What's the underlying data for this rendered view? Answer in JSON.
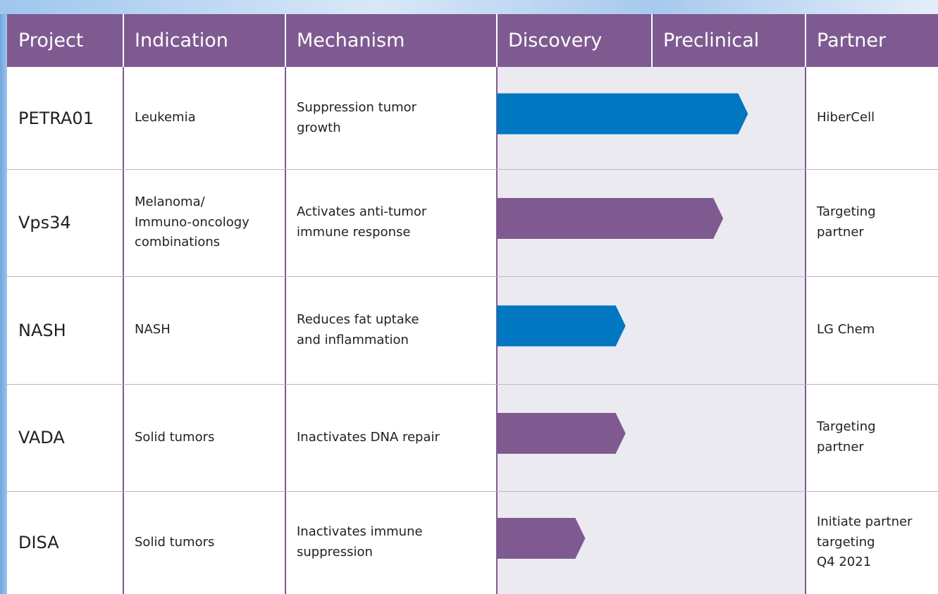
{
  "table": {
    "headers": [
      "Project",
      "Indication",
      "Mechanism",
      "Discovery",
      "Preclinical",
      "Partner"
    ],
    "rows": [
      {
        "project": "PETRA01",
        "indication": "Leukemia",
        "mechanism": "Suppression tumor\ngrowth",
        "progress": 1.62,
        "color": "#0077c0",
        "partner": "HiberCell"
      },
      {
        "project": "Vps34",
        "indication": "Melanoma/\nImmuno-oncology\ncombinations",
        "mechanism": "Activates anti-tumor\nimmune response",
        "progress": 1.46,
        "color": "#7f5a91",
        "partner": "Targeting\npartner"
      },
      {
        "project": "NASH",
        "indication": "NASH",
        "mechanism": "Reduces fat uptake\nand inflammation",
        "progress": 0.83,
        "color": "#0077c0",
        "partner": "LG Chem"
      },
      {
        "project": "VADA",
        "indication": "Solid tumors",
        "mechanism": "Inactivates DNA repair",
        "progress": 0.83,
        "color": "#7f5a91",
        "partner": "Targeting\npartner"
      },
      {
        "project": "DISA",
        "indication": "Solid tumors",
        "mechanism": "Inactivates immune\nsuppression",
        "progress": 0.57,
        "color": "#7f5a91",
        "partner": "Initiate partner\ntargeting\nQ4 2021"
      }
    ]
  }
}
